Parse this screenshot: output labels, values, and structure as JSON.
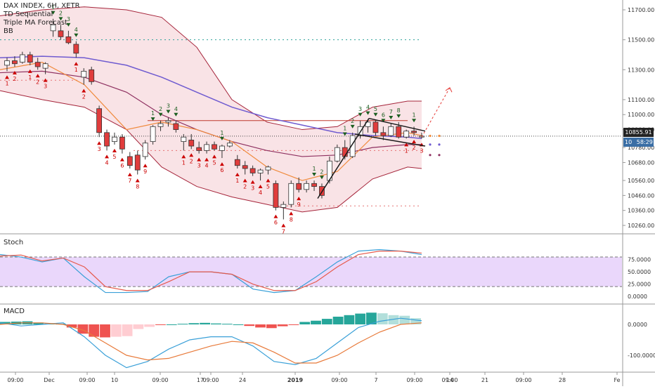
{
  "header": {
    "symbol": "DAX INDEX, 6H, XETR",
    "indicators": [
      "TD Sequential",
      "Triple MA Forecast",
      "BB"
    ]
  },
  "price_axis": {
    "ticks": [
      "11700.00",
      "11500.00",
      "11300.00",
      "11100.00",
      "11000.00",
      "10900.00",
      "10780.00",
      "10680.00",
      "10560.00",
      "10460.00",
      "10360.00",
      "10260.00"
    ],
    "last_price_label": "10855.91",
    "countdown_prefix": "10",
    "countdown_label": "58:29"
  },
  "stoch": {
    "title": "Stoch",
    "ticks": [
      "75.0000",
      "50.0000",
      "25.0000",
      "0.0000"
    ]
  },
  "macd": {
    "title": "MACD",
    "ticks": [
      "0.0000",
      "-100.0000"
    ]
  },
  "time_axis": {
    "labels": [
      "09:00",
      "Dec",
      "09:00",
      "10",
      "09:00",
      "17",
      "09:00",
      "24",
      "2019",
      "09:00",
      "7",
      "09:00",
      "14",
      "09:00",
      "21",
      "09:00",
      "28",
      "Fe"
    ]
  },
  "colors": {
    "up": "#ffffff",
    "down": "#e03c3c",
    "buy_setup": "#1b5e20",
    "sell_setup": "#cc0000",
    "ma_fast": "#f08a3c",
    "ma_mid": "#8e3060",
    "ma_slow": "#6f5bd0",
    "bb": "#a5243a",
    "stoch_k": "#3aa0d8",
    "stoch_d": "#e65a4c",
    "macd_line": "#3aa0d8",
    "signal_line": "#e87a3a",
    "hist_pos": "#26a69a",
    "hist_pos_light": "#b2dfdb",
    "hist_neg": "#ef5350",
    "hist_neg_light": "#ffcdd2"
  },
  "chart_data": {
    "type": "candlestick",
    "title": "DAX INDEX, 6H, XETR",
    "ylim": [
      10200,
      11800
    ],
    "candles": [
      {
        "o": 11330,
        "h": 11380,
        "l": 11290,
        "c": 11360
      },
      {
        "o": 11360,
        "h": 11390,
        "l": 11320,
        "c": 11340
      },
      {
        "o": 11350,
        "h": 11420,
        "l": 11340,
        "c": 11400
      },
      {
        "o": 11400,
        "h": 11420,
        "l": 11330,
        "c": 11350
      },
      {
        "o": 11350,
        "h": 11380,
        "l": 11300,
        "c": 11320
      },
      {
        "o": 11310,
        "h": 11350,
        "l": 11270,
        "c": 11340
      },
      {
        "o": 11560,
        "h": 11640,
        "l": 11520,
        "c": 11600
      },
      {
        "o": 11560,
        "h": 11600,
        "l": 11500,
        "c": 11520
      },
      {
        "o": 11520,
        "h": 11560,
        "l": 11470,
        "c": 11480
      },
      {
        "o": 11470,
        "h": 11490,
        "l": 11380,
        "c": 11410
      },
      {
        "o": 11250,
        "h": 11310,
        "l": 11200,
        "c": 11290
      },
      {
        "o": 11300,
        "h": 11320,
        "l": 11200,
        "c": 11220
      },
      {
        "o": 11040,
        "h": 11060,
        "l": 10850,
        "c": 10880
      },
      {
        "o": 10880,
        "h": 10900,
        "l": 10760,
        "c": 10790
      },
      {
        "o": 10820,
        "h": 10880,
        "l": 10800,
        "c": 10850
      },
      {
        "o": 10850,
        "h": 10870,
        "l": 10740,
        "c": 10770
      },
      {
        "o": 10720,
        "h": 10750,
        "l": 10640,
        "c": 10660
      },
      {
        "o": 10730,
        "h": 10760,
        "l": 10600,
        "c": 10630
      },
      {
        "o": 10720,
        "h": 10830,
        "l": 10700,
        "c": 10810
      },
      {
        "o": 10820,
        "h": 10930,
        "l": 10800,
        "c": 10920
      },
      {
        "o": 10920,
        "h": 10960,
        "l": 10890,
        "c": 10940
      },
      {
        "o": 10950,
        "h": 10980,
        "l": 10920,
        "c": 10960
      },
      {
        "o": 10940,
        "h": 10960,
        "l": 10880,
        "c": 10900
      },
      {
        "o": 10820,
        "h": 10870,
        "l": 10760,
        "c": 10850
      },
      {
        "o": 10830,
        "h": 10870,
        "l": 10770,
        "c": 10790
      },
      {
        "o": 10780,
        "h": 10820,
        "l": 10740,
        "c": 10760
      },
      {
        "o": 10760,
        "h": 10820,
        "l": 10740,
        "c": 10800
      },
      {
        "o": 10800,
        "h": 10820,
        "l": 10760,
        "c": 10770
      },
      {
        "o": 10760,
        "h": 10800,
        "l": 10710,
        "c": 10790
      },
      {
        "o": 10790,
        "h": 10830,
        "l": 10780,
        "c": 10810
      },
      {
        "o": 10700,
        "h": 10730,
        "l": 10640,
        "c": 10660
      },
      {
        "o": 10660,
        "h": 10690,
        "l": 10600,
        "c": 10640
      },
      {
        "o": 10640,
        "h": 10660,
        "l": 10590,
        "c": 10610
      },
      {
        "o": 10610,
        "h": 10640,
        "l": 10560,
        "c": 10630
      },
      {
        "o": 10630,
        "h": 10660,
        "l": 10600,
        "c": 10650
      },
      {
        "o": 10540,
        "h": 10560,
        "l": 10360,
        "c": 10380
      },
      {
        "o": 10380,
        "h": 10420,
        "l": 10300,
        "c": 10400
      },
      {
        "o": 10400,
        "h": 10560,
        "l": 10380,
        "c": 10540
      },
      {
        "o": 10540,
        "h": 10580,
        "l": 10480,
        "c": 10500
      },
      {
        "o": 10500,
        "h": 10560,
        "l": 10480,
        "c": 10540
      },
      {
        "o": 10540,
        "h": 10560,
        "l": 10490,
        "c": 10520
      },
      {
        "o": 10520,
        "h": 10540,
        "l": 10440,
        "c": 10460
      },
      {
        "o": 10560,
        "h": 10720,
        "l": 10540,
        "c": 10690
      },
      {
        "o": 10690,
        "h": 10800,
        "l": 10680,
        "c": 10780
      },
      {
        "o": 10780,
        "h": 10830,
        "l": 10700,
        "c": 10720
      },
      {
        "o": 10720,
        "h": 10880,
        "l": 10710,
        "c": 10860
      },
      {
        "o": 10860,
        "h": 10960,
        "l": 10840,
        "c": 10920
      },
      {
        "o": 10920,
        "h": 10970,
        "l": 10880,
        "c": 10950
      },
      {
        "o": 10950,
        "h": 10960,
        "l": 10860,
        "c": 10880
      },
      {
        "o": 10880,
        "h": 10920,
        "l": 10830,
        "c": 10860
      },
      {
        "o": 10860,
        "h": 10940,
        "l": 10850,
        "c": 10920
      },
      {
        "o": 10920,
        "h": 10950,
        "l": 10840,
        "c": 10850
      },
      {
        "o": 10850,
        "h": 10900,
        "l": 10840,
        "c": 10890
      },
      {
        "o": 10890,
        "h": 10920,
        "l": 10860,
        "c": 10880
      },
      {
        "o": 10850,
        "h": 10880,
        "l": 10840,
        "c": 10856
      }
    ],
    "levels": {
      "resistance": 11500,
      "support": 10390,
      "entry": 10960
    },
    "stoch": {
      "k_end": 80,
      "d_end": 80,
      "ylim": [
        0,
        100
      ]
    },
    "macd": {
      "ylim": [
        -160,
        40
      ]
    }
  }
}
